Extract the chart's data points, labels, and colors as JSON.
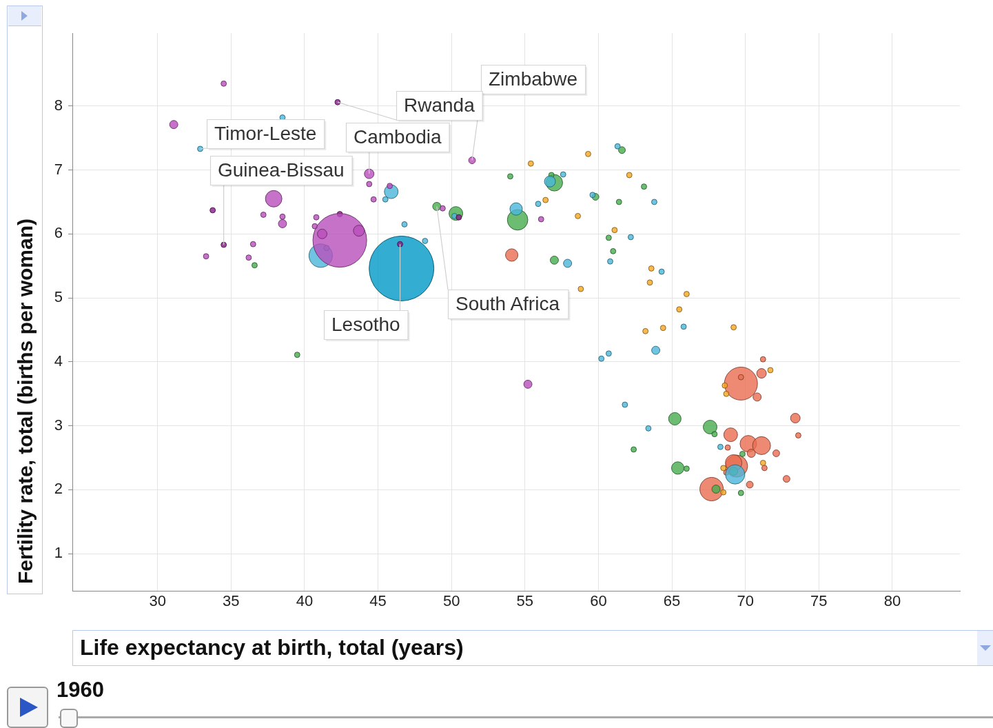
{
  "chart_data": {
    "type": "bubble",
    "xlabel": "Life expectancy at birth, total (years)",
    "ylabel": "Fertility rate, total (births per woman)",
    "xlim": [
      24.2,
      84.6
    ],
    "xticks": [
      30,
      35,
      40,
      45,
      50,
      55,
      60,
      65,
      70,
      75,
      80
    ],
    "ylim": [
      0.42,
      9.14
    ],
    "yticks": [
      1,
      2,
      3,
      4,
      5,
      6,
      7,
      8
    ],
    "grid": true,
    "annotations": [
      {
        "text": "Zimbabwe",
        "x": 51.4,
        "y": 7.15
      },
      {
        "text": "Rwanda",
        "x": 42.25,
        "y": 8.06
      },
      {
        "text": "South Africa",
        "x": 49.0,
        "y": 6.43
      },
      {
        "text": "Timor-Leste",
        "x": 32.9,
        "y": 7.33
      },
      {
        "text": "Cambodia",
        "x": 44.4,
        "y": 6.94
      },
      {
        "text": "Guinea-Bissau",
        "x": 34.5,
        "y": 5.83
      },
      {
        "text": "Lesotho",
        "x": 46.5,
        "y": 5.84
      },
      "1960"
    ],
    "series": [
      {
        "color": "#b94fbb",
        "x": [
          34.5,
          31.1,
          37.9,
          37.2,
          38.5,
          38.5,
          33.3,
          36.5,
          36.2,
          40.8,
          40.7,
          42.4,
          41.2,
          43.7,
          44.4,
          44.7,
          45.8,
          55.2,
          56.1,
          49.4,
          51.4,
          44.4
        ],
        "values": [
          8.35,
          7.71,
          6.55,
          6.3,
          6.27,
          6.16,
          5.65,
          5.84,
          5.63,
          6.26,
          6.12,
          5.9,
          6.0,
          6.05,
          6.78,
          6.54,
          6.75,
          3.65,
          6.23,
          6.4,
          7.15,
          6.94
        ],
        "sizes": [
          0.007,
          0.016,
          0.065,
          0.007,
          0.007,
          0.016,
          0.007,
          0.007,
          0.007,
          0.007,
          0.007,
          0.69,
          0.022,
          0.029,
          0.007,
          0.007,
          0.007,
          0.016,
          0.007,
          0.007,
          0.011,
          0.022
        ]
      },
      {
        "color": "#8a1b8a",
        "x": [
          42.25,
          33.75,
          34.5,
          42.4,
          46.5,
          50.5
        ],
        "values": [
          8.06,
          6.37,
          5.83,
          6.31,
          5.84,
          6.26
        ],
        "sizes": [
          0.007,
          0.007,
          0.007,
          0.007,
          0.007,
          0.007
        ]
      },
      {
        "color": "#4bb7d9",
        "x": [
          38.5,
          32.9,
          41.1,
          41.5,
          45.9,
          45.5,
          46.8,
          48.2,
          50.2,
          54.4,
          55.9,
          57.6,
          56.7,
          57.9,
          61.3,
          59.6,
          63.8,
          62.2,
          60.8,
          64.3,
          65.8,
          60.7,
          60.2,
          63.9,
          61.8,
          63.4,
          68.3,
          69.3
        ],
        "values": [
          7.82,
          7.33,
          5.66,
          5.78,
          6.66,
          6.54,
          6.15,
          5.89,
          6.28,
          6.39,
          6.47,
          6.93,
          6.82,
          5.54,
          7.37,
          6.61,
          6.5,
          5.95,
          5.57,
          5.41,
          4.55,
          4.13,
          4.05,
          4.18,
          3.33,
          2.96,
          2.67,
          2.24
        ],
        "sizes": [
          0.007,
          0.007,
          0.131,
          0.007,
          0.045,
          0.007,
          0.007,
          0.007,
          0.007,
          0.037,
          0.007,
          0.007,
          0.029,
          0.016,
          0.007,
          0.007,
          0.007,
          0.007,
          0.007,
          0.007,
          0.007,
          0.007,
          0.007,
          0.016,
          0.007,
          0.007,
          0.007,
          0.089
        ]
      },
      {
        "color": "#47ad4f",
        "x": [
          36.6,
          39.5,
          49.0,
          50.3,
          54.0,
          54.5,
          57.0,
          56.8,
          57.0,
          61.6,
          59.8,
          61.4,
          63.1,
          60.7,
          61.0,
          62.4,
          65.2,
          67.6,
          67.9,
          69.8,
          65.4,
          66.0,
          68.0,
          69.2,
          69.7
        ],
        "values": [
          5.51,
          4.11,
          6.43,
          6.32,
          6.9,
          6.22,
          6.8,
          6.92,
          5.59,
          7.31,
          6.58,
          6.5,
          6.74,
          5.94,
          5.73,
          2.63,
          3.11,
          2.98,
          2.87,
          2.56,
          2.34,
          2.33,
          2.01,
          2.29,
          1.95
        ],
        "sizes": [
          0.007,
          0.007,
          0.016,
          0.045,
          0.007,
          0.1,
          0.065,
          0.007,
          0.016,
          0.011,
          0.011,
          0.007,
          0.007,
          0.007,
          0.007,
          0.007,
          0.037,
          0.045,
          0.007,
          0.007,
          0.037,
          0.007,
          0.016,
          0.016,
          0.007
        ]
      },
      {
        "color": "#f5a623",
        "x": [
          55.4,
          59.3,
          62.1,
          58.6,
          61.1,
          56.4,
          58.8,
          63.6,
          63.5,
          66.0,
          65.5,
          64.4,
          63.2,
          69.2,
          71.7,
          68.6,
          68.7,
          68.5,
          71.2,
          68.5
        ],
        "values": [
          7.1,
          7.25,
          6.92,
          6.28,
          6.06,
          6.53,
          5.14,
          5.46,
          5.24,
          5.06,
          4.82,
          4.53,
          4.48,
          4.54,
          3.87,
          3.63,
          3.5,
          2.34,
          2.42,
          1.96
        ],
        "sizes": [
          0.007,
          0.007,
          0.007,
          0.007,
          0.007,
          0.007,
          0.007,
          0.007,
          0.007,
          0.007,
          0.007,
          0.007,
          0.007,
          0.007,
          0.007,
          0.007,
          0.007,
          0.007,
          0.007,
          0.007
        ]
      },
      {
        "color": "#ea6d50",
        "x": [
          54.1,
          69.7,
          69.7,
          71.2,
          71.1,
          70.8,
          73.4,
          73.6,
          69.0,
          70.2,
          71.1,
          70.4,
          72.1,
          71.3,
          69.4,
          69.2,
          68.7,
          72.8,
          70.3,
          67.7,
          68.8
        ],
        "values": [
          5.67,
          3.66,
          3.76,
          4.04,
          3.82,
          3.45,
          3.12,
          2.85,
          2.86,
          2.72,
          2.69,
          2.57,
          2.57,
          2.34,
          2.37,
          2.42,
          2.27,
          2.17,
          2.08,
          2.01,
          2.66
        ],
        "sizes": [
          0.037,
          0.26,
          0.007,
          0.007,
          0.022,
          0.016,
          0.022,
          0.007,
          0.045,
          0.065,
          0.077,
          0.016,
          0.011,
          0.007,
          0.116,
          0.065,
          0.007,
          0.011,
          0.011,
          0.131,
          0.007
        ]
      },
      {
        "color": "#0099c6",
        "x": [
          46.6
        ],
        "values": [
          5.46
        ],
        "sizes": [
          1
        ]
      }
    ]
  }
}
